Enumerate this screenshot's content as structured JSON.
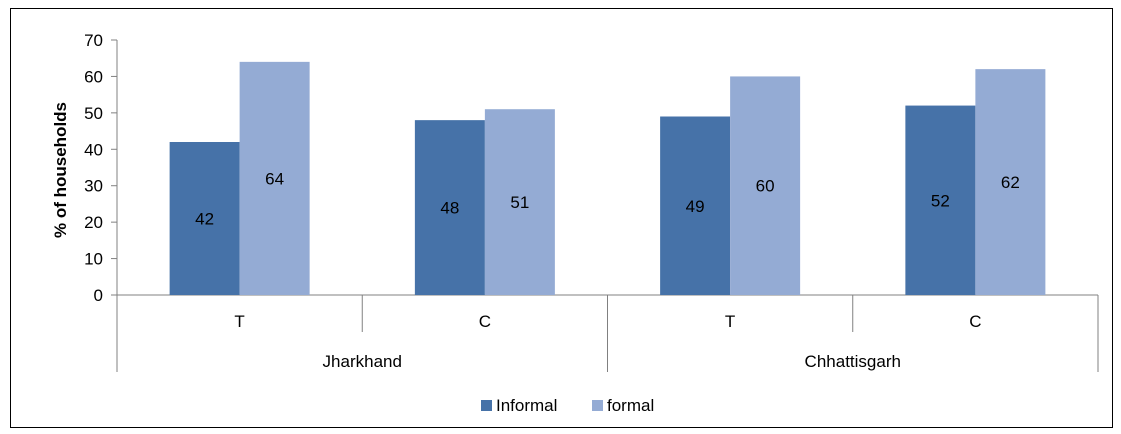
{
  "chart_data": {
    "type": "bar",
    "title": "",
    "xlabel": "",
    "ylabel": "% of households",
    "ylim": [
      0,
      70
    ],
    "yticks": [
      0,
      10,
      20,
      30,
      40,
      50,
      60,
      70
    ],
    "groups": [
      {
        "label": "Jharkhand",
        "categories": [
          "T",
          "C"
        ]
      },
      {
        "label": "Chhattisgarh",
        "categories": [
          "T",
          "C"
        ]
      }
    ],
    "series": [
      {
        "name": "Informal",
        "color": "#4672A8",
        "values": [
          42,
          48,
          49,
          52
        ]
      },
      {
        "name": "formal",
        "color": "#94ABD4",
        "values": [
          64,
          51,
          60,
          62
        ]
      }
    ],
    "grid": false,
    "legend": "bottom"
  }
}
